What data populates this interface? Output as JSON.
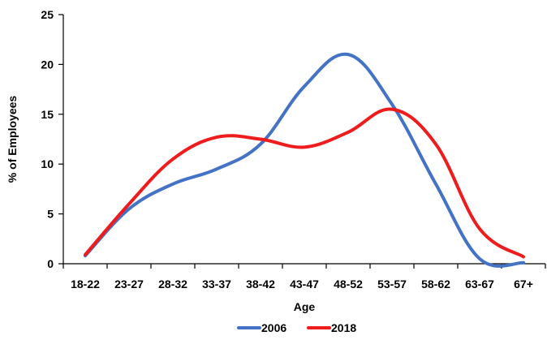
{
  "chart_data": {
    "type": "line",
    "categories": [
      "18-22",
      "23-27",
      "28-32",
      "33-37",
      "38-42",
      "43-47",
      "48-52",
      "53-57",
      "58-62",
      "63-67",
      "67+"
    ],
    "series": [
      {
        "name": "2006",
        "color": "#4472c4",
        "values": [
          0.8,
          5.5,
          8.0,
          9.5,
          12.0,
          17.8,
          21.0,
          16.0,
          8.0,
          0.5,
          0.1
        ]
      },
      {
        "name": "2018",
        "color": "#ee1c1c",
        "values": [
          0.9,
          6.0,
          10.5,
          12.7,
          12.5,
          11.7,
          13.2,
          15.5,
          12.0,
          3.5,
          0.7
        ]
      }
    ],
    "yticks": [
      "0",
      "5",
      "10",
      "15",
      "20",
      "25"
    ],
    "ylim": [
      0,
      25
    ],
    "xlabel": "Age",
    "ylabel": "% of Employees",
    "title": "",
    "grid": false,
    "legend_position": "bottom"
  }
}
